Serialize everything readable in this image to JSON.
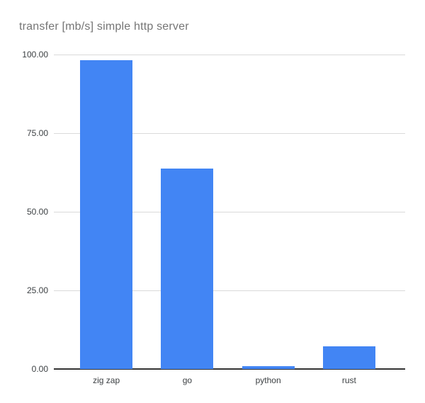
{
  "chart_data": {
    "type": "bar",
    "title": "transfer [mb/s] simple http server",
    "categories": [
      "zig zap",
      "go",
      "python",
      "rust"
    ],
    "values": [
      98.2,
      63.7,
      0.9,
      7.2
    ],
    "xlabel": "",
    "ylabel": "",
    "ylim": [
      0,
      100
    ],
    "yticks": [
      0,
      25,
      50,
      75,
      100
    ],
    "ytick_labels": [
      "0.00",
      "25.00",
      "50.00",
      "75.00",
      "100.00"
    ],
    "grid": true,
    "legend": false,
    "colors": {
      "bar": "#4285f4",
      "gridline": "#dadada",
      "baseline": "#333333",
      "title_text": "#757575",
      "tick_text": "#3c4043",
      "background": "#ffffff"
    }
  }
}
